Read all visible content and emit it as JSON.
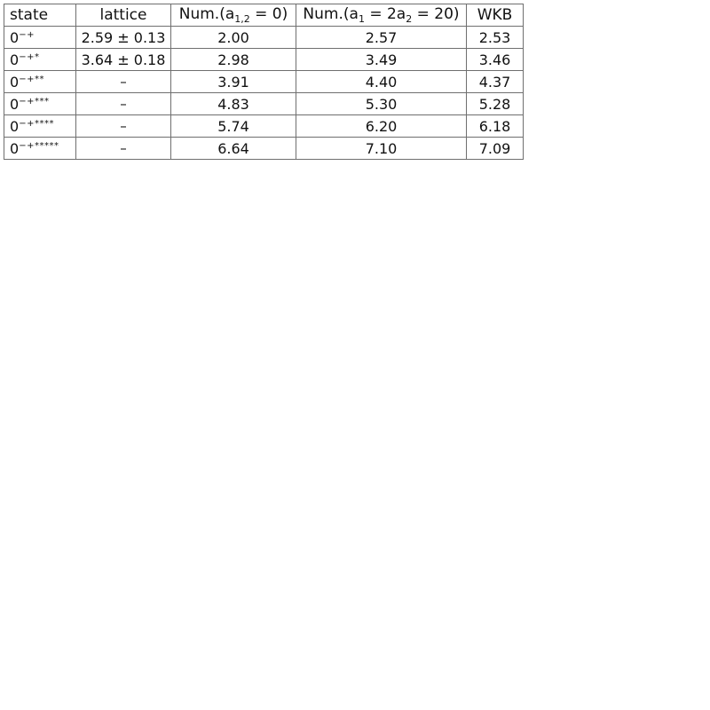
{
  "table": {
    "headers": {
      "state": "state",
      "lattice": "lattice",
      "num1": {
        "prefix": "Num.(a",
        "subscript": "1,2",
        "suffix": " = 0)"
      },
      "num2": {
        "prefix": "Num.(a",
        "subscript1": "1",
        "middle": " = 2a",
        "subscript2": "2",
        "suffix": " = 20)"
      },
      "wkb": "WKB"
    },
    "rows": [
      {
        "state_base": "0",
        "state_sup": "−+",
        "lattice": "2.59 ± 0.13",
        "num1": "2.00",
        "num2": "2.57",
        "wkb": "2.53"
      },
      {
        "state_base": "0",
        "state_sup": "−+*",
        "lattice": "3.64 ± 0.18",
        "num1": "2.98",
        "num2": "3.49",
        "wkb": "3.46"
      },
      {
        "state_base": "0",
        "state_sup": "−+**",
        "lattice": "–",
        "num1": "3.91",
        "num2": "4.40",
        "wkb": "4.37"
      },
      {
        "state_base": "0",
        "state_sup": "−+***",
        "lattice": "–",
        "num1": "4.83",
        "num2": "5.30",
        "wkb": "5.28"
      },
      {
        "state_base": "0",
        "state_sup": "−+****",
        "lattice": "–",
        "num1": "5.74",
        "num2": "6.20",
        "wkb": "6.18"
      },
      {
        "state_base": "0",
        "state_sup": "−+*****",
        "lattice": "–",
        "num1": "6.64",
        "num2": "7.10",
        "wkb": "7.09"
      }
    ]
  }
}
